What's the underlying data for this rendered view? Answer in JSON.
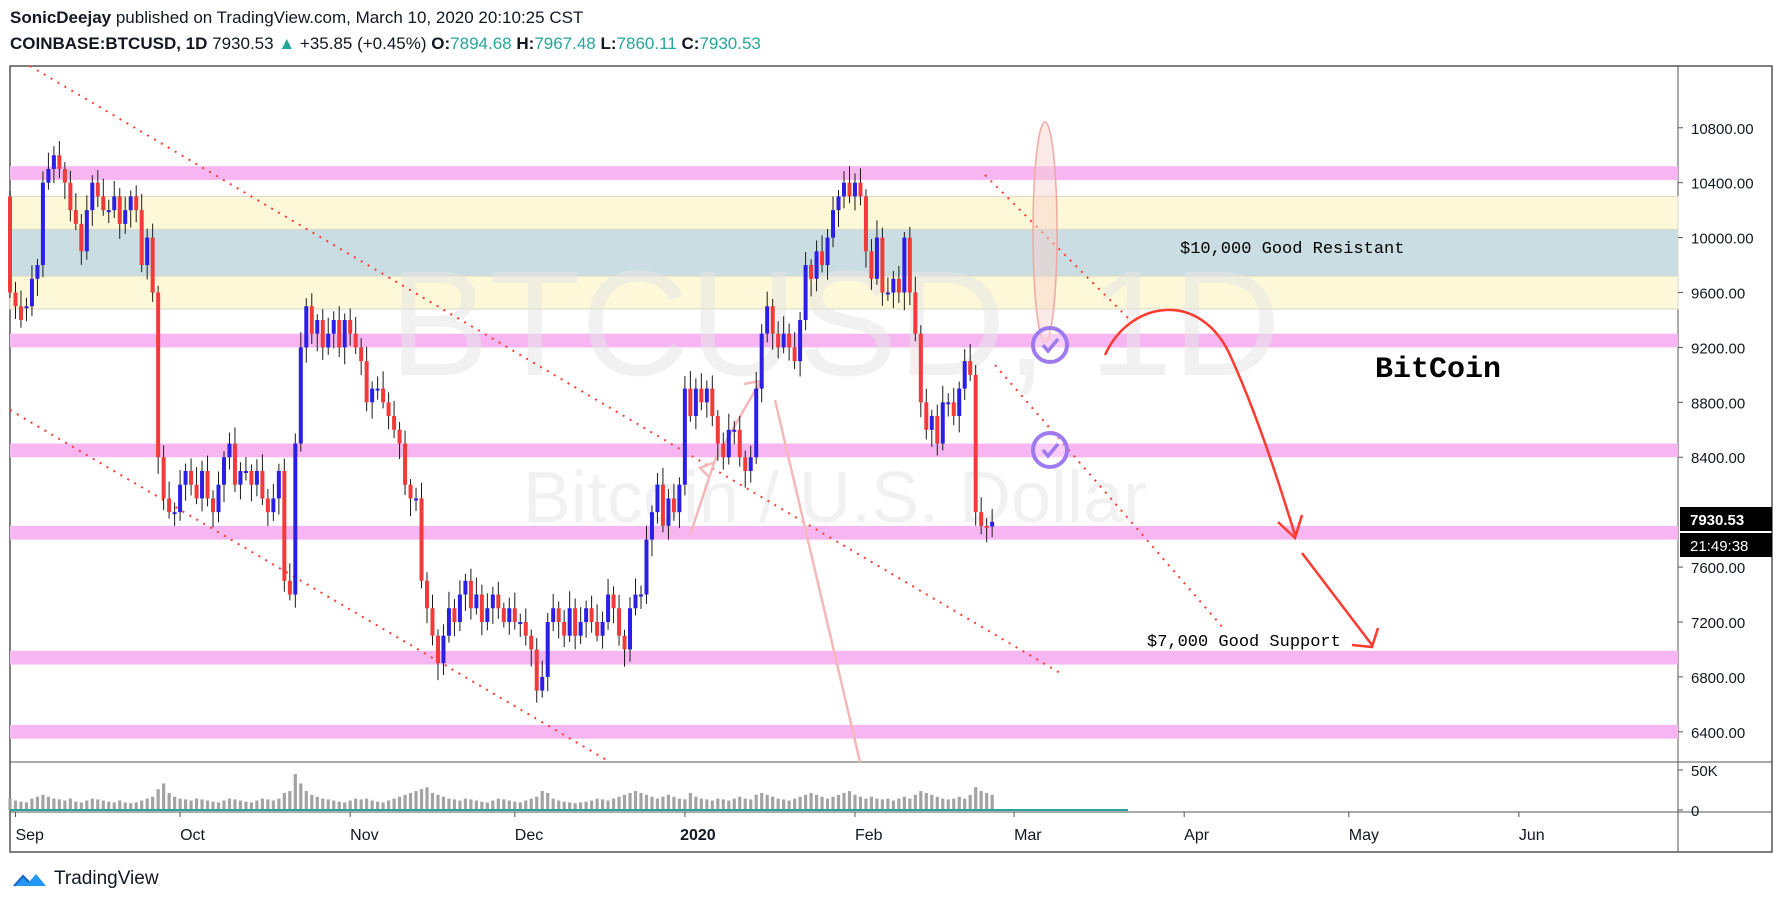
{
  "header": {
    "publisher": "SonicDeejay",
    "published_text": "published on TradingView.com, March 10, 2020 20:10:25 CST",
    "symbol": "COINBASE:BTCUSD, 1D",
    "last": "7930.53",
    "change": "+35.85 (+0.45%)",
    "open_label": "O:",
    "open": "7894.68",
    "high_label": "H:",
    "high": "7967.48",
    "low_label": "L:",
    "low": "7860.11",
    "close_label": "C:",
    "close": "7930.53"
  },
  "footer": {
    "brand": "TradingView"
  },
  "colors": {
    "up": "#2b1fe6",
    "down": "#f23a3a",
    "zone_pink": "#f7b6f2",
    "zone_yellow": "#fdf8d8",
    "zone_blue": "#c9dde2",
    "annot_red": "#ff3b30"
  },
  "chart_data": {
    "type": "candlestick",
    "watermark": [
      "BTCUSD, 1D",
      "Bitcoin / U.S. Dollar"
    ],
    "price_axis": {
      "ticks": [
        "10800.00",
        "10400.00",
        "10000.00",
        "9600.00",
        "9200.00",
        "8800.00",
        "8400.00",
        "7600.00",
        "7200.00",
        "6800.00",
        "6400.00"
      ],
      "ylim": [
        6180,
        11250
      ]
    },
    "price_tag": {
      "price": "7930.53",
      "countdown": "21:49:38"
    },
    "volume_axis": {
      "ticks": [
        "50K",
        "0"
      ]
    },
    "time_axis": {
      "labels": [
        "Sep",
        "Oct",
        "Nov",
        "Dec",
        "2020",
        "Feb",
        "Mar",
        "Apr",
        "May",
        "Jun"
      ],
      "start": "2019-08-31",
      "end": "2020-06-30"
    },
    "annotations": [
      {
        "text": "$10,000 Good Resistant",
        "price": 9880
      },
      {
        "text": "$7,000 Good Support",
        "price": 7010
      },
      {
        "text": "BitCoin",
        "price": 9180
      }
    ],
    "zones": [
      {
        "kind": "pink",
        "from": 10420,
        "to": 10520
      },
      {
        "kind": "yellow",
        "from": 9480,
        "to": 10300
      },
      {
        "kind": "blue",
        "from": 9720,
        "to": 10060
      },
      {
        "kind": "pink",
        "from": 9200,
        "to": 9300
      },
      {
        "kind": "pink",
        "from": 8400,
        "to": 8500
      },
      {
        "kind": "pink",
        "from": 7800,
        "to": 7900
      },
      {
        "kind": "pink",
        "from": 6890,
        "to": 6990
      },
      {
        "kind": "pink",
        "from": 6350,
        "to": 6450
      }
    ],
    "candles": [
      [
        10300,
        9600
      ],
      [
        9600,
        9500
      ],
      [
        9500,
        9400
      ],
      [
        9500,
        9500
      ],
      [
        9500,
        9700
      ],
      [
        9700,
        9800
      ],
      [
        9800,
        10400
      ],
      [
        10400,
        10500
      ],
      [
        10500,
        10600
      ],
      [
        10600,
        10500
      ],
      [
        10500,
        10400
      ],
      [
        10400,
        10200
      ],
      [
        10200,
        10100
      ],
      [
        10100,
        9900
      ],
      [
        9900,
        10200
      ],
      [
        10200,
        10400
      ],
      [
        10400,
        10300
      ],
      [
        10300,
        10200
      ],
      [
        10200,
        10200
      ],
      [
        10200,
        10300
      ],
      [
        10300,
        10100
      ],
      [
        10100,
        10200
      ],
      [
        10200,
        10300
      ],
      [
        10300,
        10200
      ],
      [
        10200,
        9800
      ],
      [
        9800,
        10000
      ],
      [
        10000,
        9600
      ],
      [
        9600,
        8400
      ],
      [
        8400,
        8100
      ],
      [
        8100,
        8000
      ],
      [
        8000,
        8000
      ],
      [
        8000,
        8200
      ],
      [
        8200,
        8300
      ],
      [
        8300,
        8200
      ],
      [
        8200,
        8100
      ],
      [
        8100,
        8300
      ],
      [
        8300,
        8100
      ],
      [
        8100,
        8000
      ],
      [
        8000,
        8200
      ],
      [
        8200,
        8400
      ],
      [
        8400,
        8500
      ],
      [
        8500,
        8200
      ],
      [
        8200,
        8300
      ],
      [
        8300,
        8300
      ],
      [
        8300,
        8200
      ],
      [
        8200,
        8300
      ],
      [
        8300,
        8100
      ],
      [
        8100,
        8000
      ],
      [
        8000,
        8100
      ],
      [
        8100,
        8300
      ],
      [
        8300,
        7500
      ],
      [
        7500,
        7400
      ],
      [
        7400,
        8500
      ],
      [
        8500,
        9200
      ],
      [
        9200,
        9500
      ],
      [
        9500,
        9300
      ],
      [
        9300,
        9400
      ],
      [
        9400,
        9200
      ],
      [
        9200,
        9300
      ],
      [
        9300,
        9400
      ],
      [
        9400,
        9200
      ],
      [
        9200,
        9400
      ],
      [
        9400,
        9300
      ],
      [
        9300,
        9200
      ],
      [
        9200,
        9100
      ],
      [
        9100,
        8800
      ],
      [
        8800,
        8900
      ],
      [
        8900,
        8900
      ],
      [
        8900,
        8800
      ],
      [
        8800,
        8700
      ],
      [
        8700,
        8600
      ],
      [
        8600,
        8500
      ],
      [
        8500,
        8200
      ],
      [
        8200,
        8100
      ],
      [
        8100,
        8100
      ],
      [
        8100,
        7500
      ],
      [
        7500,
        7300
      ],
      [
        7300,
        7100
      ],
      [
        7100,
        6900
      ],
      [
        6900,
        7100
      ],
      [
        7100,
        7300
      ],
      [
        7300,
        7200
      ],
      [
        7200,
        7400
      ],
      [
        7400,
        7500
      ],
      [
        7500,
        7300
      ],
      [
        7300,
        7400
      ],
      [
        7400,
        7200
      ],
      [
        7200,
        7300
      ],
      [
        7300,
        7400
      ],
      [
        7400,
        7300
      ],
      [
        7300,
        7200
      ],
      [
        7200,
        7300
      ],
      [
        7300,
        7200
      ],
      [
        7200,
        7200
      ],
      [
        7200,
        7100
      ],
      [
        7100,
        7000
      ],
      [
        7000,
        6700
      ],
      [
        6700,
        6800
      ],
      [
        6800,
        7200
      ],
      [
        7200,
        7300
      ],
      [
        7300,
        7200
      ],
      [
        7200,
        7100
      ],
      [
        7100,
        7300
      ],
      [
        7300,
        7100
      ],
      [
        7100,
        7200
      ],
      [
        7200,
        7300
      ],
      [
        7300,
        7200
      ],
      [
        7200,
        7100
      ],
      [
        7100,
        7200
      ],
      [
        7200,
        7400
      ],
      [
        7400,
        7300
      ],
      [
        7300,
        7100
      ],
      [
        7100,
        7000
      ],
      [
        7000,
        7300
      ],
      [
        7300,
        7400
      ],
      [
        7400,
        7400
      ],
      [
        7400,
        7800
      ],
      [
        7800,
        8000
      ],
      [
        8000,
        8200
      ],
      [
        8200,
        7900
      ],
      [
        7900,
        8100
      ],
      [
        8100,
        8000
      ],
      [
        8000,
        8200
      ],
      [
        8200,
        8900
      ],
      [
        8900,
        8700
      ],
      [
        8700,
        8900
      ],
      [
        8900,
        8800
      ],
      [
        8800,
        8900
      ],
      [
        8900,
        8700
      ],
      [
        8700,
        8500
      ],
      [
        8500,
        8400
      ],
      [
        8400,
        8600
      ],
      [
        8600,
        8600
      ],
      [
        8600,
        8400
      ],
      [
        8400,
        8300
      ],
      [
        8300,
        8400
      ],
      [
        8400,
        8900
      ],
      [
        8900,
        9300
      ],
      [
        9300,
        9500
      ],
      [
        9500,
        9300
      ],
      [
        9300,
        9200
      ],
      [
        9200,
        9300
      ],
      [
        9300,
        9200
      ],
      [
        9200,
        9100
      ],
      [
        9100,
        9400
      ],
      [
        9400,
        9800
      ],
      [
        9800,
        9700
      ],
      [
        9700,
        9900
      ],
      [
        9900,
        9800
      ],
      [
        9800,
        10000
      ],
      [
        10000,
        10200
      ],
      [
        10200,
        10300
      ],
      [
        10300,
        10400
      ],
      [
        10400,
        10300
      ],
      [
        10300,
        10400
      ],
      [
        10400,
        10300
      ],
      [
        10300,
        9900
      ],
      [
        9900,
        9700
      ],
      [
        9700,
        10000
      ],
      [
        10000,
        9600
      ],
      [
        9600,
        9600
      ],
      [
        9600,
        9700
      ],
      [
        9700,
        9600
      ],
      [
        9600,
        10000
      ],
      [
        10000,
        9600
      ],
      [
        9600,
        9300
      ],
      [
        9300,
        8800
      ],
      [
        8800,
        8600
      ],
      [
        8600,
        8700
      ],
      [
        8700,
        8500
      ],
      [
        8500,
        8800
      ],
      [
        8800,
        8800
      ],
      [
        8800,
        8700
      ],
      [
        8700,
        8900
      ],
      [
        8900,
        9100
      ],
      [
        9100,
        9000
      ],
      [
        9000,
        8000
      ],
      [
        8000,
        7900
      ],
      [
        7900,
        7895
      ],
      [
        7895,
        7930
      ]
    ],
    "volume_levels": [
      0.3,
      0.25,
      0.22,
      0.2,
      0.3,
      0.35,
      0.4,
      0.35,
      0.3,
      0.28,
      0.25,
      0.3,
      0.22,
      0.2,
      0.25,
      0.3,
      0.28,
      0.25,
      0.22,
      0.2,
      0.25,
      0.2,
      0.18,
      0.2,
      0.25,
      0.3,
      0.35,
      0.55,
      0.7,
      0.45,
      0.35,
      0.3,
      0.28,
      0.25,
      0.3,
      0.28,
      0.25,
      0.22,
      0.2,
      0.25,
      0.3,
      0.28,
      0.25,
      0.22,
      0.2,
      0.25,
      0.3,
      0.28,
      0.25,
      0.3,
      0.45,
      0.5,
      0.95,
      0.7,
      0.5,
      0.4,
      0.35,
      0.3,
      0.28,
      0.25,
      0.22,
      0.2,
      0.25,
      0.3,
      0.28,
      0.3,
      0.25,
      0.22,
      0.2,
      0.25,
      0.3,
      0.35,
      0.4,
      0.45,
      0.5,
      0.55,
      0.6,
      0.45,
      0.4,
      0.35,
      0.3,
      0.28,
      0.25,
      0.3,
      0.28,
      0.25,
      0.22,
      0.2,
      0.25,
      0.3,
      0.28,
      0.25,
      0.22,
      0.2,
      0.25,
      0.3,
      0.35,
      0.5,
      0.45,
      0.3,
      0.25,
      0.22,
      0.2,
      0.18,
      0.2,
      0.22,
      0.25,
      0.3,
      0.28,
      0.25,
      0.3,
      0.35,
      0.4,
      0.45,
      0.5,
      0.45,
      0.4,
      0.35,
      0.3,
      0.35,
      0.4,
      0.35,
      0.3,
      0.28,
      0.45,
      0.35,
      0.3,
      0.28,
      0.25,
      0.3,
      0.28,
      0.25,
      0.3,
      0.35,
      0.3,
      0.28,
      0.4,
      0.45,
      0.4,
      0.35,
      0.3,
      0.28,
      0.25,
      0.3,
      0.35,
      0.4,
      0.45,
      0.4,
      0.35,
      0.3,
      0.35,
      0.4,
      0.45,
      0.5,
      0.4,
      0.35,
      0.3,
      0.35,
      0.3,
      0.28,
      0.3,
      0.25,
      0.3,
      0.35,
      0.3,
      0.4,
      0.5,
      0.45,
      0.4,
      0.35,
      0.3,
      0.28,
      0.3,
      0.35,
      0.3,
      0.4,
      0.6,
      0.5,
      0.45,
      0.4
    ]
  }
}
